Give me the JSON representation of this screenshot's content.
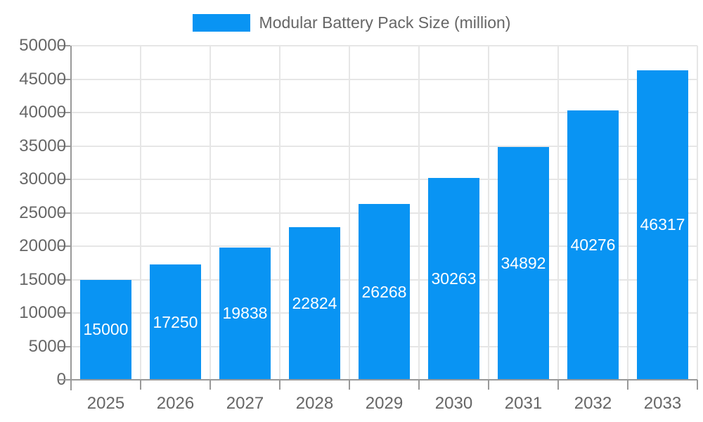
{
  "chart": {
    "legend": {
      "label": "Modular Battery Pack Size (million)"
    },
    "colors": {
      "bar": "#0994f3",
      "grid": "#e6e6e6",
      "axis": "#999999",
      "text": "#666666",
      "value_label": "#ffffff",
      "background": "#ffffff"
    }
  },
  "chart_data": {
    "type": "bar",
    "title": "Modular Battery Pack Size (million)",
    "categories": [
      "2025",
      "2026",
      "2027",
      "2028",
      "2029",
      "2030",
      "2031",
      "2032",
      "2033"
    ],
    "values": [
      15000,
      17250,
      19838,
      22824,
      26268,
      30263,
      34892,
      40276,
      46317
    ],
    "xlabel": "",
    "ylabel": "",
    "ylim": [
      0,
      50000
    ],
    "ytick_step": 5000,
    "ytick_labels": [
      "0",
      "5000",
      "10000",
      "15000",
      "20000",
      "25000",
      "30000",
      "35000",
      "40000",
      "45000",
      "50000"
    ],
    "grid": true,
    "legend_position": "top-center",
    "value_label_style": "inside-vertical-center-white"
  }
}
